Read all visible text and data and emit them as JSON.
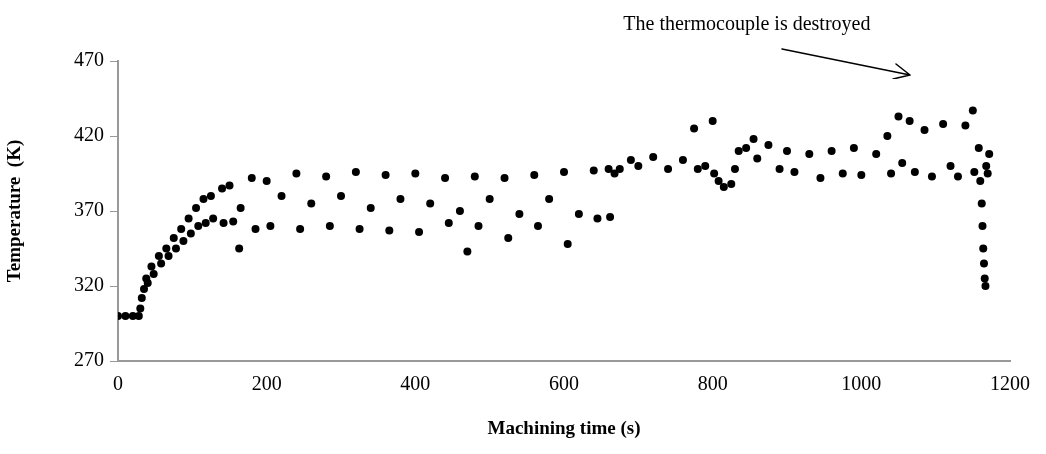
{
  "chart_data": {
    "type": "scatter",
    "xlabel": "Machining time (s)",
    "ylabel": "Temperature  (K)",
    "x": [
      0,
      10,
      20,
      28,
      30,
      32,
      35,
      38,
      40,
      45,
      48,
      55,
      58,
      65,
      68,
      75,
      78,
      85,
      88,
      95,
      98,
      105,
      108,
      115,
      118,
      125,
      128,
      140,
      142,
      150,
      155,
      163,
      165,
      180,
      185,
      200,
      205,
      220,
      240,
      245,
      260,
      280,
      285,
      300,
      320,
      325,
      340,
      360,
      365,
      380,
      400,
      405,
      420,
      440,
      445,
      460,
      470,
      480,
      485,
      500,
      520,
      525,
      540,
      560,
      565,
      580,
      600,
      605,
      620,
      640,
      645,
      660,
      662,
      668,
      675,
      690,
      700,
      720,
      740,
      760,
      775,
      780,
      790,
      800,
      802,
      808,
      815,
      825,
      830,
      835,
      845,
      855,
      860,
      875,
      890,
      900,
      910,
      930,
      945,
      960,
      975,
      990,
      1000,
      1020,
      1035,
      1040,
      1050,
      1055,
      1065,
      1072,
      1085,
      1095,
      1110,
      1120,
      1130,
      1140,
      1150,
      1152,
      1158,
      1160,
      1162,
      1163,
      1164,
      1165,
      1166,
      1167,
      1168,
      1170,
      1172
    ],
    "values": [
      300,
      300,
      300,
      300,
      305,
      312,
      318,
      325,
      322,
      333,
      328,
      340,
      335,
      345,
      340,
      352,
      345,
      358,
      350,
      365,
      355,
      372,
      360,
      378,
      362,
      380,
      365,
      385,
      362,
      387,
      363,
      345,
      372,
      392,
      358,
      390,
      360,
      380,
      395,
      358,
      375,
      393,
      360,
      380,
      396,
      358,
      372,
      394,
      357,
      378,
      395,
      356,
      375,
      392,
      362,
      370,
      343,
      393,
      360,
      378,
      392,
      352,
      368,
      394,
      360,
      378,
      396,
      348,
      368,
      397,
      365,
      398,
      366,
      395,
      398,
      404,
      400,
      406,
      398,
      404,
      425,
      398,
      400,
      430,
      395,
      390,
      386,
      388,
      398,
      410,
      412,
      418,
      405,
      414,
      398,
      410,
      396,
      408,
      392,
      410,
      395,
      412,
      394,
      408,
      420,
      395,
      433,
      402,
      430,
      396,
      424,
      393,
      428,
      400,
      393,
      427,
      437,
      396,
      412,
      390,
      375,
      360,
      345,
      335,
      325,
      320,
      400,
      395,
      408
    ],
    "color": "#000000",
    "marker": "circle",
    "xlim": [
      0,
      1200
    ],
    "xticks": [
      0,
      200,
      400,
      600,
      800,
      1000,
      1200
    ],
    "ylim": [
      270,
      470
    ],
    "yticks": [
      270,
      320,
      370,
      420,
      470
    ],
    "annotations": [
      "The thermocouple is destroyed"
    ]
  }
}
